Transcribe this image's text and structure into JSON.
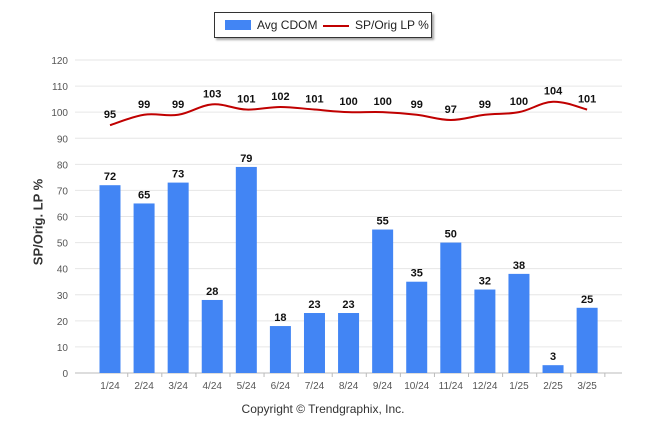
{
  "chart_data": {
    "type": "bar",
    "categories": [
      "1/24",
      "2/24",
      "3/24",
      "4/24",
      "5/24",
      "6/24",
      "7/24",
      "8/24",
      "9/24",
      "10/24",
      "11/24",
      "12/24",
      "1/25",
      "2/25",
      "3/25"
    ],
    "series": [
      {
        "name": "Avg CDOM",
        "type": "bar",
        "color": "#4285f4",
        "values": [
          72,
          65,
          73,
          28,
          79,
          18,
          23,
          23,
          55,
          35,
          50,
          32,
          38,
          3,
          25
        ]
      },
      {
        "name": "SP/Orig LP %",
        "type": "line",
        "color": "#c00000",
        "values": [
          95,
          99,
          99,
          103,
          101,
          102,
          101,
          100,
          100,
          99,
          97,
          99,
          100,
          104,
          101
        ]
      }
    ],
    "ylabel": "SP/Orig. LP %",
    "ylim": [
      0,
      120
    ],
    "yticks": [
      0,
      10,
      20,
      30,
      40,
      50,
      60,
      70,
      80,
      90,
      100,
      110,
      120
    ],
    "grid": true,
    "legend_position": "top-center"
  },
  "footer": "Copyright © Trendgraphix, Inc."
}
